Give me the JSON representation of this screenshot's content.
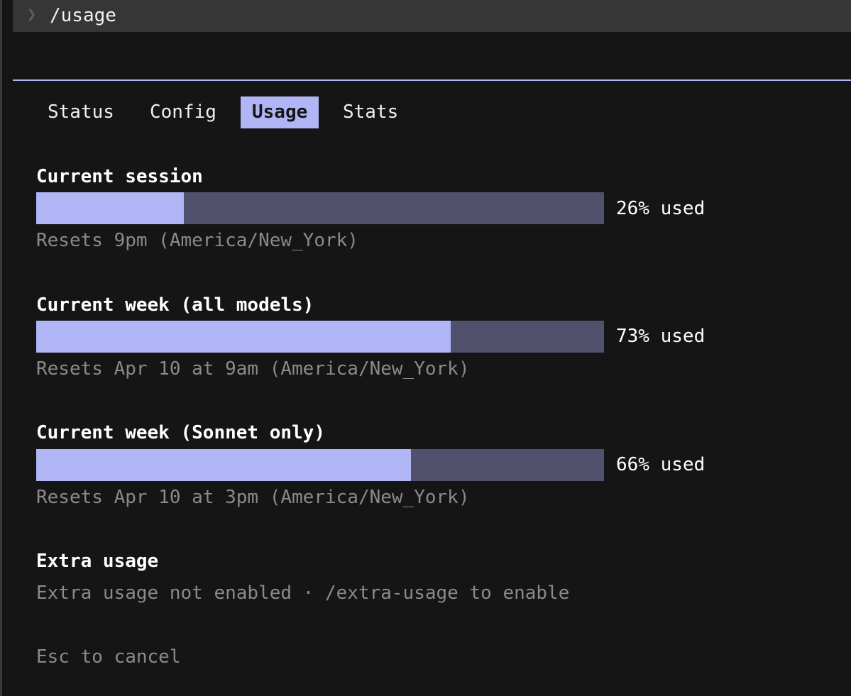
{
  "command": {
    "prompt_icon": "chevron-right-icon",
    "text": "/usage"
  },
  "tabs": [
    {
      "label": "Status",
      "active": false
    },
    {
      "label": "Config",
      "active": false
    },
    {
      "label": "Usage",
      "active": true
    },
    {
      "label": "Stats",
      "active": false
    }
  ],
  "sections": [
    {
      "title": "Current session",
      "percent": 26,
      "percent_label": "26% used",
      "reset": "Resets 9pm (America/New_York)"
    },
    {
      "title": "Current week (all models)",
      "percent": 73,
      "percent_label": "73% used",
      "reset": "Resets Apr 10 at 9am (America/New_York)"
    },
    {
      "title": "Current week (Sonnet only)",
      "percent": 66,
      "percent_label": "66% used",
      "reset": "Resets Apr 10 at 3pm (America/New_York)"
    }
  ],
  "extra": {
    "title": "Extra usage",
    "text": "Extra usage not enabled · /extra-usage to enable"
  },
  "footer": {
    "cancel": "Esc to cancel"
  },
  "colors": {
    "accent": "#b0b5f5",
    "track": "#51516e",
    "background": "#151515",
    "muted_text": "#8a8a8a"
  }
}
